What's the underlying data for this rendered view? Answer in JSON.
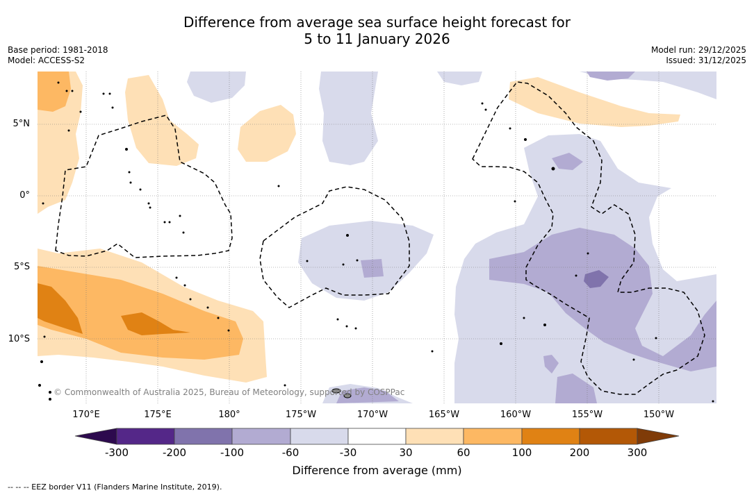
{
  "title": {
    "line1": "Difference from average sea surface height forecast for",
    "line2": "5 to 11 January 2026"
  },
  "meta_left": {
    "base_period": "Base period: 1981-2018",
    "model": "Model: ACCESS-S2"
  },
  "meta_right": {
    "model_run": "Model run: 29/12/2025",
    "issued": "Issued: 31/12/2025"
  },
  "lat_labels": [
    "5°N",
    "0°",
    "5°S",
    "10°S"
  ],
  "lon_labels": [
    "170°E",
    "175°E",
    "180°",
    "175°W",
    "170°W",
    "165°W",
    "160°W",
    "155°W",
    "150°W"
  ],
  "copyright": "© Commonwealth of Australia 2025, Bureau of Meteorology, supported by COSPPac",
  "colorbar": {
    "ticks": [
      "-300",
      "-200",
      "-100",
      "-60",
      "-30",
      "30",
      "60",
      "100",
      "200",
      "300"
    ],
    "label": "Difference from average (mm)",
    "colors": {
      "below_min": "#2d0a4e",
      "bin_-300_-200": "#542788",
      "bin_-200_-100": "#8073ac",
      "bin_-100_-60": "#b2abd2",
      "bin_-60_-30": "#d8daeb",
      "bin_-30_30": "#ffffff",
      "bin_30_60": "#fee0b6",
      "bin_60_100": "#fdb863",
      "bin_100_200": "#e08214",
      "bin_200_300": "#b35806",
      "above_max": "#7f3b08"
    }
  },
  "footnote": "-- -- -- EEZ border V11 (Flanders Marine Institute, 2019)."
}
